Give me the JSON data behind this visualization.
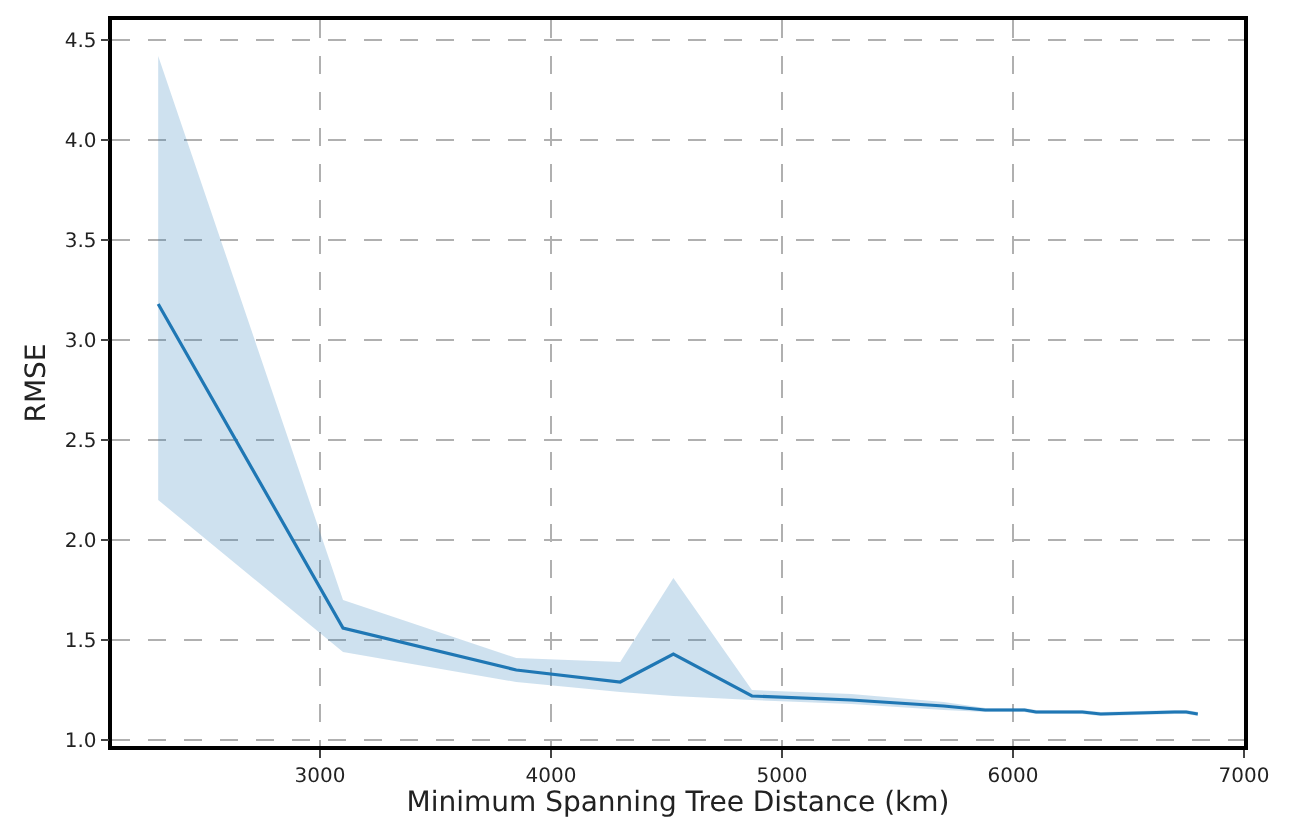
{
  "chart_data": {
    "type": "line",
    "xlabel": "Minimum Spanning Tree Distance (km)",
    "ylabel": "RMSE",
    "x": [
      2300,
      3100,
      3850,
      4300,
      4530,
      4870,
      5300,
      5700,
      5880,
      6050,
      6100,
      6300,
      6380,
      6700,
      6750,
      6800
    ],
    "series": [
      {
        "color": "#1f77b4",
        "values": [
          3.18,
          1.56,
          1.35,
          1.29,
          1.43,
          1.22,
          1.2,
          1.17,
          1.15,
          1.15,
          1.14,
          1.14,
          1.13,
          1.14,
          1.14,
          1.13
        ],
        "lower": [
          2.2,
          1.44,
          1.29,
          1.24,
          1.22,
          1.2,
          1.18,
          1.15,
          1.14,
          1.14,
          1.13,
          1.13,
          1.12,
          1.13,
          1.13,
          1.12
        ],
        "upper": [
          4.42,
          1.7,
          1.41,
          1.39,
          1.81,
          1.25,
          1.23,
          1.19,
          1.16,
          1.16,
          1.15,
          1.15,
          1.14,
          1.15,
          1.15,
          1.14
        ]
      }
    ],
    "xlim": [
      2100,
      7000
    ],
    "ylim": [
      0.97,
      4.6
    ],
    "xticks": [
      3000,
      4000,
      5000,
      6000,
      7000
    ],
    "yticks": [
      {
        "value": 1,
        "label": "1.0"
      },
      1.5,
      {
        "value": 2,
        "label": "2.0"
      },
      2.5,
      {
        "value": 3,
        "label": "3.0"
      },
      3.5,
      {
        "value": 4,
        "label": "4.0"
      },
      4.5
    ],
    "grid": true,
    "marker": "none",
    "line_style": "solid"
  }
}
